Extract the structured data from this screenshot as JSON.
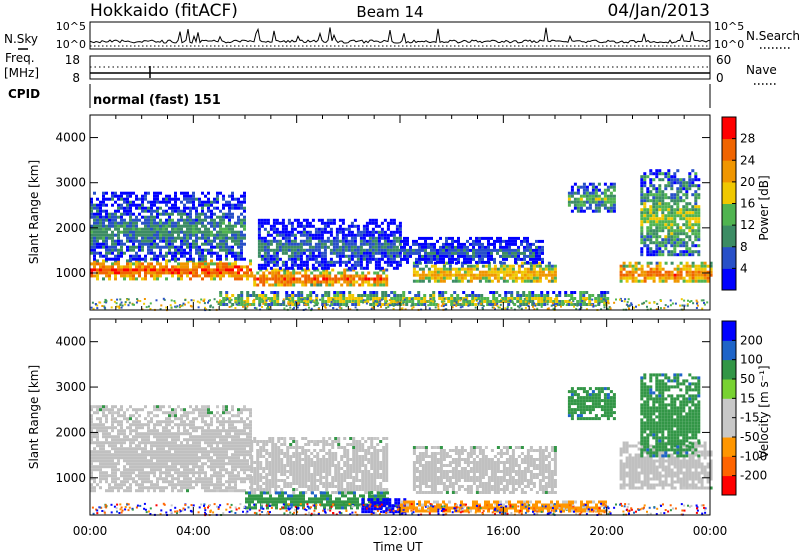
{
  "header": {
    "radar": "Hokkaido (fitACF)",
    "beam": "Beam 14",
    "date": "04/Jan/2013"
  },
  "panels": {
    "nsky": {
      "left_label": "N.Sky",
      "right_label": "N.Search",
      "left_ticks": [
        "10^5",
        "10^0"
      ],
      "right_ticks": [
        "10^5",
        "10^0"
      ]
    },
    "freq": {
      "left_label_1": "Freq.",
      "left_label_2": "[MHz]",
      "right_label": "Nave",
      "left_ticks": [
        "18",
        "8"
      ],
      "right_ticks": [
        "60",
        "0"
      ]
    },
    "cpid": {
      "label": "CPID",
      "value": "normal (fast) 151"
    }
  },
  "colors": {
    "power": [
      "#0000ff",
      "#2850c8",
      "#3c8c64",
      "#50b450",
      "#f0c800",
      "#f09600",
      "#f06400",
      "#ff0000"
    ],
    "velocity": [
      "#ff0000",
      "#ff6400",
      "#ff9600",
      "#c8c8c8",
      "#c8c8c8",
      "#78d232",
      "#329646",
      "#1e64c8",
      "#0000ff"
    ],
    "ground_scatter": "#c0c0c0"
  },
  "chart_data": [
    {
      "type": "heatmap",
      "title": "",
      "xlabel": "",
      "ylabel": "Slant Range [km]",
      "xlim": [
        0,
        24
      ],
      "ylim": [
        180,
        4500
      ],
      "x_ticks": [],
      "y_ticks": [
        "4000",
        "3000",
        "2000",
        "1000"
      ],
      "y_tick_values": [
        4000,
        3000,
        2000,
        1000
      ],
      "colorbar": {
        "label": "Power [dB]",
        "ticks": [
          "28",
          "24",
          "20",
          "16",
          "12",
          "8",
          "4"
        ],
        "tick_values": [
          28,
          24,
          20,
          16,
          12,
          8,
          4
        ],
        "range": [
          0,
          32
        ]
      },
      "features": [
        {
          "t0": 0.0,
          "t1": 6.2,
          "r0": 900,
          "r1": 1300,
          "power": 28
        },
        {
          "t0": 0.0,
          "t1": 6.0,
          "r0": 1300,
          "r1": 2800,
          "power": 11
        },
        {
          "t0": 6.2,
          "t1": 11.5,
          "r0": 750,
          "r1": 1100,
          "power": 27
        },
        {
          "t0": 6.5,
          "t1": 12.0,
          "r0": 1100,
          "r1": 2200,
          "power": 9
        },
        {
          "t0": 12.5,
          "t1": 18.0,
          "r0": 800,
          "r1": 1250,
          "power": 22
        },
        {
          "t0": 12.0,
          "t1": 17.5,
          "r0": 1250,
          "r1": 1800,
          "power": 8
        },
        {
          "t0": 18.5,
          "t1": 20.3,
          "r0": 2400,
          "r1": 3000,
          "power": 14
        },
        {
          "t0": 20.5,
          "t1": 24.0,
          "r0": 800,
          "r1": 1250,
          "power": 26
        },
        {
          "t0": 21.3,
          "t1": 23.6,
          "r0": 1400,
          "r1": 3300,
          "power": 16
        },
        {
          "t0": 5.0,
          "t1": 20.0,
          "r0": 300,
          "r1": 600,
          "power": 18
        }
      ]
    },
    {
      "type": "heatmap",
      "title": "",
      "xlabel": "Time UT",
      "ylabel": "Slant Range [km]",
      "xlim": [
        0,
        24
      ],
      "ylim": [
        180,
        4500
      ],
      "x_ticks": [
        "00:00",
        "04:00",
        "08:00",
        "12:00",
        "16:00",
        "20:00",
        "00:00"
      ],
      "x_tick_values": [
        0,
        4,
        8,
        12,
        16,
        20,
        24
      ],
      "y_ticks": [
        "4000",
        "3000",
        "2000",
        "1000"
      ],
      "y_tick_values": [
        4000,
        3000,
        2000,
        1000
      ],
      "colorbar": {
        "label": "Velocity [m s⁻¹]",
        "ticks": [
          "200",
          "100",
          "50",
          "15",
          "-15",
          "-50",
          "-100",
          "-200"
        ],
        "tick_values": [
          200,
          100,
          50,
          15,
          -15,
          -50,
          -100,
          -200
        ],
        "range": [
          -300,
          300
        ]
      },
      "features": [
        {
          "t0": 0.0,
          "t1": 6.2,
          "r0": 700,
          "r1": 2600,
          "velocity": 0
        },
        {
          "t0": 6.2,
          "t1": 11.5,
          "r0": 700,
          "r1": 1900,
          "velocity": 0
        },
        {
          "t0": 12.5,
          "t1": 18.0,
          "r0": 700,
          "r1": 1700,
          "velocity": 0
        },
        {
          "t0": 20.5,
          "t1": 24.0,
          "r0": 800,
          "r1": 1800,
          "velocity": 0
        },
        {
          "t0": 18.5,
          "t1": 20.3,
          "r0": 2300,
          "r1": 3000,
          "velocity": 40
        },
        {
          "t0": 21.3,
          "t1": 23.6,
          "r0": 1500,
          "r1": 3300,
          "velocity": 40
        },
        {
          "t0": 6.0,
          "t1": 11.5,
          "r0": 350,
          "r1": 700,
          "velocity": 40
        },
        {
          "t0": 10.5,
          "t1": 12.2,
          "r0": 220,
          "r1": 550,
          "velocity": 200
        },
        {
          "t0": 12.0,
          "t1": 20.0,
          "r0": 250,
          "r1": 500,
          "velocity": -60
        }
      ]
    }
  ]
}
